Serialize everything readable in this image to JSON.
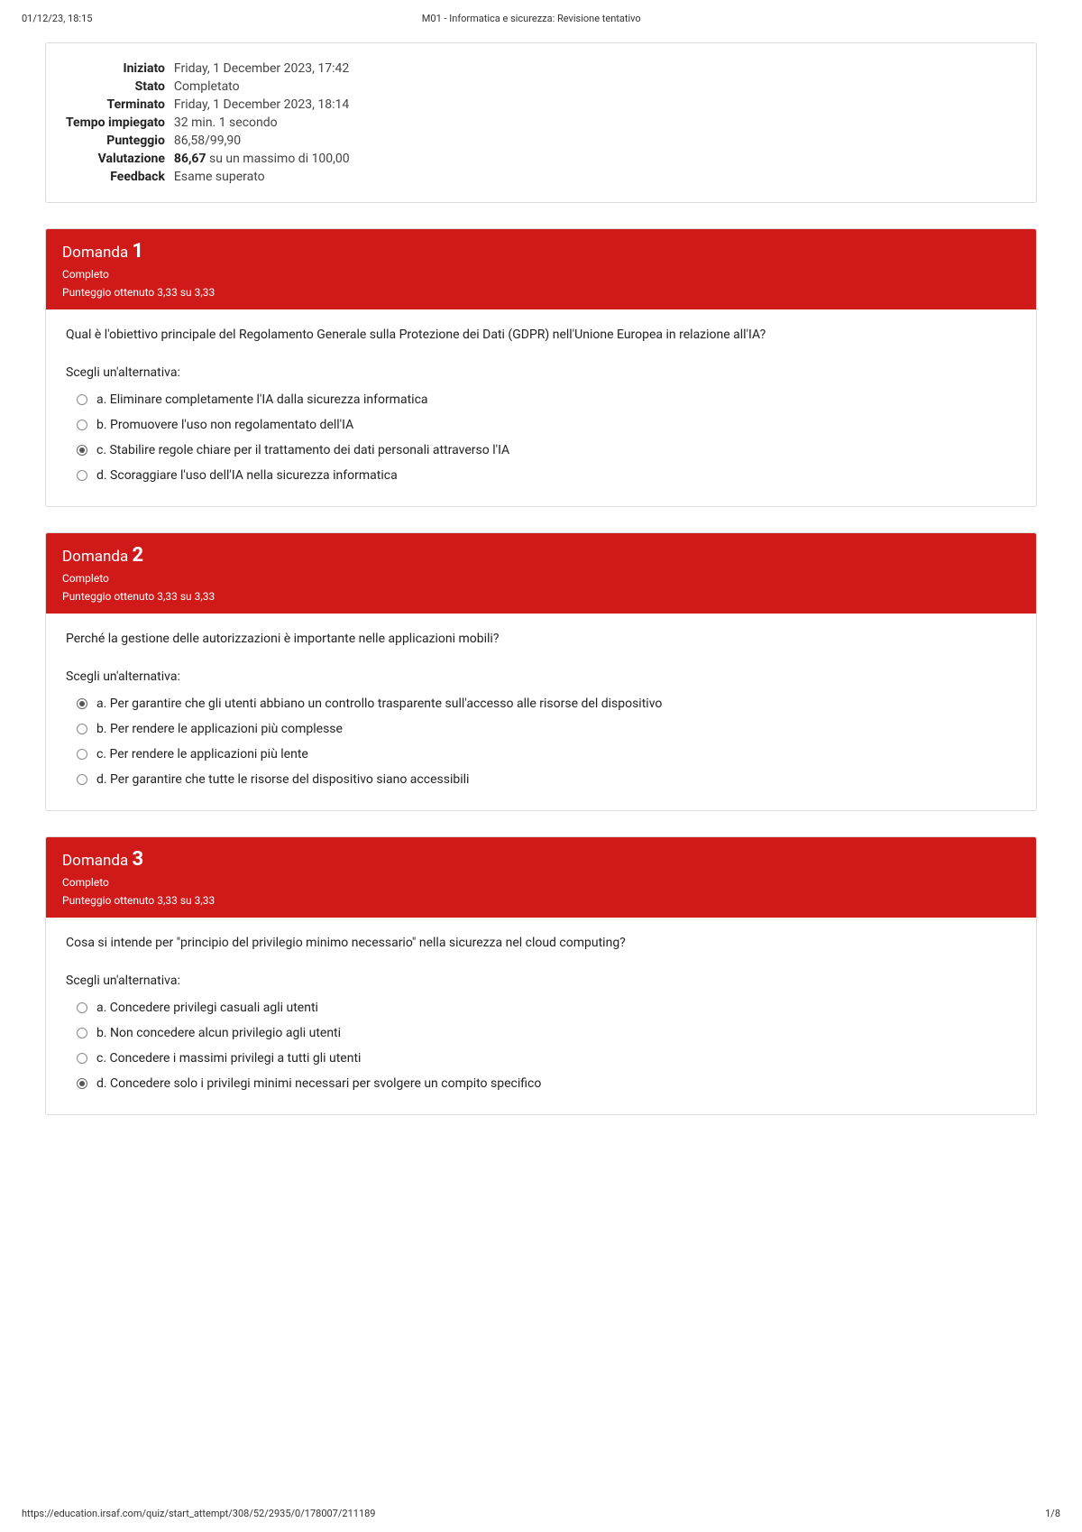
{
  "header": {
    "datetime": "01/12/23, 18:15",
    "title": "M01 - Informatica e sicurezza: Revisione tentativo"
  },
  "summary": {
    "rows": [
      {
        "label": "Iniziato",
        "value": "Friday, 1 December 2023, 17:42"
      },
      {
        "label": "Stato",
        "value": "Completato"
      },
      {
        "label": "Terminato",
        "value": "Friday, 1 December 2023, 18:14"
      },
      {
        "label": "Tempo impiegato",
        "value": "32 min. 1 secondo"
      },
      {
        "label": "Punteggio",
        "value": "86,58/99,90"
      },
      {
        "label": "Valutazione",
        "value_strong": "86,67",
        "value_rest": " su un massimo di 100,00"
      },
      {
        "label": "Feedback",
        "value": "Esame superato"
      }
    ]
  },
  "questions": [
    {
      "title_prefix": "Domanda ",
      "number": "1",
      "status": "Completo",
      "mark": "Punteggio ottenuto 3,33 su 3,33",
      "text": "Qual è l'obiettivo principale del Regolamento Generale sulla Protezione dei Dati (GDPR) nell'Unione Europea in relazione all'IA?",
      "choose_label": "Scegli un'alternativa:",
      "options": [
        {
          "letter": "a.",
          "text": "Eliminare completamente l'IA dalla sicurezza informatica",
          "selected": false
        },
        {
          "letter": "b.",
          "text": "Promuovere l'uso non regolamentato dell'IA",
          "selected": false
        },
        {
          "letter": "c.",
          "text": "Stabilire regole chiare per il trattamento dei dati personali attraverso l'IA",
          "selected": true
        },
        {
          "letter": "d.",
          "text": "Scoraggiare l'uso dell'IA nella sicurezza informatica",
          "selected": false
        }
      ]
    },
    {
      "title_prefix": "Domanda ",
      "number": "2",
      "status": "Completo",
      "mark": "Punteggio ottenuto 3,33 su 3,33",
      "text": "Perché la gestione delle autorizzazioni è importante nelle applicazioni mobili?",
      "choose_label": "Scegli un'alternativa:",
      "options": [
        {
          "letter": "a.",
          "text": "Per garantire che gli utenti abbiano un controllo trasparente sull'accesso alle risorse del dispositivo",
          "selected": true
        },
        {
          "letter": "b.",
          "text": "Per rendere le applicazioni più complesse",
          "selected": false
        },
        {
          "letter": "c.",
          "text": "Per rendere le applicazioni più lente",
          "selected": false
        },
        {
          "letter": "d.",
          "text": "Per garantire che tutte le risorse del dispositivo siano accessibili",
          "selected": false
        }
      ]
    },
    {
      "title_prefix": "Domanda ",
      "number": "3",
      "status": "Completo",
      "mark": "Punteggio ottenuto 3,33 su 3,33",
      "text": "Cosa si intende per \"principio del privilegio minimo necessario\" nella sicurezza nel cloud computing?",
      "choose_label": "Scegli un'alternativa:",
      "options": [
        {
          "letter": "a.",
          "text": "Concedere privilegi casuali agli utenti",
          "selected": false
        },
        {
          "letter": "b.",
          "text": "Non concedere alcun privilegio agli utenti",
          "selected": false
        },
        {
          "letter": "c.",
          "text": "Concedere i massimi privilegi a tutti gli utenti",
          "selected": false
        },
        {
          "letter": "d.",
          "text": "Concedere solo i privilegi minimi necessari per svolgere un compito specifico",
          "selected": true
        }
      ]
    }
  ],
  "footer": {
    "url": "https://education.irsaf.com/quiz/start_attempt/308/52/2935/0/178007/211189",
    "page": "1/8"
  }
}
